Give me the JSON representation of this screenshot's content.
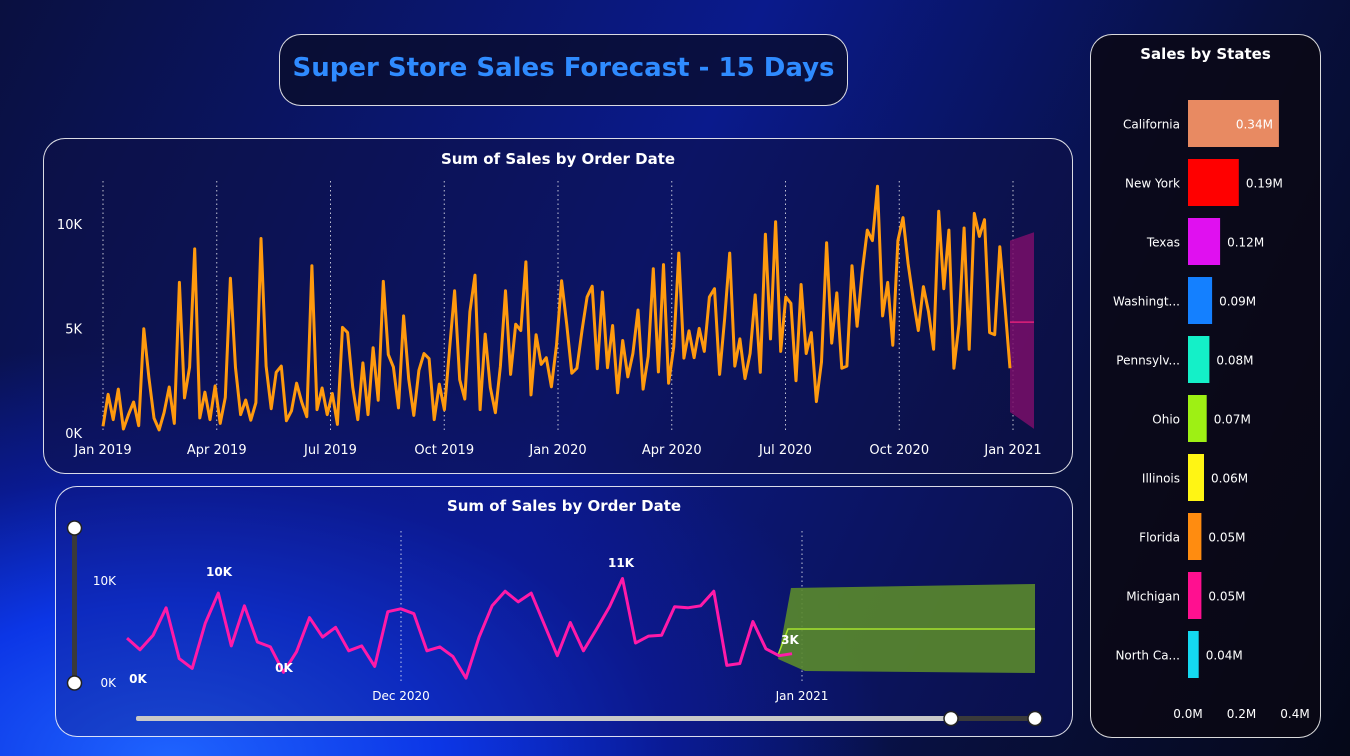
{
  "title": "Super Store Sales Forecast - 15 Days",
  "colors": {
    "title": "#2f8bff",
    "sales_line": "#ff9a0e",
    "forecast_band": "#7a0e6a",
    "forecast_line": "#e0207a",
    "bottom_line": "#ff1aa8",
    "bottom_band": "#5a8a2c",
    "bottom_forecast_line": "#a6e22e"
  },
  "chart_data": [
    {
      "type": "line",
      "title": "Sum of Sales by Order Date",
      "x_ticks": [
        "Jan 2019",
        "Apr 2019",
        "Jul 2019",
        "Oct 2019",
        "Jan 2020",
        "Apr 2020",
        "Jul 2020",
        "Oct 2020",
        "Jan 2021"
      ],
      "y_ticks": [
        "0K",
        "5K",
        "10K"
      ],
      "ylim": [
        0,
        12000
      ],
      "grid": "vertical dotted",
      "series": [
        {
          "values": [
            320,
            1850,
            640,
            2100,
            190,
            880,
            1480,
            350,
            4980,
            2650,
            710,
            150,
            980,
            2200,
            460,
            7200,
            1680,
            3150,
            8800,
            720,
            1950,
            640,
            2250,
            460,
            1700,
            7400,
            3120,
            880,
            1580,
            610,
            1450,
            9300,
            3200,
            1160,
            2900,
            3200,
            590,
            1060,
            2380,
            1480,
            780,
            8000,
            1120,
            2150,
            880,
            1890,
            410,
            5050,
            4800,
            2200,
            640,
            3350,
            880,
            4080,
            1570,
            7250,
            3750,
            3150,
            1200,
            5600,
            2580,
            840,
            3000,
            3800,
            3550,
            640,
            2340,
            1110,
            3980,
            6800,
            2550,
            1620,
            5800,
            7550,
            1120,
            4730,
            2180,
            970,
            3200,
            6800,
            2800,
            5200,
            4900,
            8180,
            1820,
            4700,
            3280,
            3600,
            2210,
            4200,
            7280,
            5200,
            2860,
            3100,
            4900,
            6500,
            7020,
            3080,
            6740,
            3120,
            5140,
            1920,
            4420,
            2680,
            3800,
            5880,
            2100,
            3660,
            7850,
            2920,
            8050,
            2380,
            4100,
            8600,
            3580,
            4880,
            3600,
            5000,
            3900,
            6500,
            6900,
            2800,
            5500,
            8600,
            3200,
            4500,
            2600,
            3800,
            6600,
            2900,
            9500,
            4500,
            10100,
            3900,
            6500,
            6200,
            2500,
            7100,
            3800,
            4800,
            1500,
            3400,
            9100,
            4300,
            6700,
            3100,
            3200,
            8000,
            5100,
            7700,
            9700,
            9200,
            11800,
            5600,
            7200,
            4200,
            9200,
            10300,
            8100,
            6400,
            4900,
            7000,
            5800,
            4000,
            10600,
            6900,
            9700,
            3100,
            5200,
            9800,
            4000,
            10500,
            9400,
            10200,
            4800,
            4700,
            8900,
            6100,
            3100
          ],
          "forecast": {
            "range": [
              1000,
              9600
            ],
            "value": 5300
          }
        }
      ]
    },
    {
      "type": "line",
      "title": "Sum of Sales by Order Date",
      "x_ticks": [
        "Dec 2020",
        "Jan 2021"
      ],
      "y_ticks": [
        "0K",
        "10K"
      ],
      "ylim": [
        0,
        13000
      ],
      "data_labels": [
        "0K",
        "10K",
        "0K",
        "11K",
        "3K"
      ],
      "series": [
        {
          "values": [
            4700,
            3500,
            5000,
            7800,
            2600,
            1600,
            6200,
            9300,
            3900,
            8000,
            4300,
            3800,
            1200,
            3300,
            6800,
            4800,
            5800,
            3400,
            3900,
            1800,
            7400,
            7700,
            7200,
            3400,
            3800,
            2800,
            600,
            4800,
            8000,
            9500,
            8400,
            9300,
            6100,
            2900,
            6300,
            3400,
            5600,
            7900,
            10800,
            4200,
            4900,
            5000,
            7900,
            7800,
            8000,
            9500,
            1900,
            2100,
            6400,
            3600,
            2900,
            3100
          ],
          "forecast": {
            "range": [
              900,
              9900
            ],
            "value": 4600
          }
        }
      ]
    },
    {
      "type": "bar",
      "title": "Sales by States",
      "orientation": "horizontal",
      "categories": [
        "California",
        "New York",
        "Texas",
        "Washingt...",
        "Pennsylv...",
        "Ohio",
        "Illinois",
        "Florida",
        "Michigan",
        "North Ca..."
      ],
      "values": [
        0.34,
        0.19,
        0.12,
        0.09,
        0.08,
        0.07,
        0.06,
        0.05,
        0.05,
        0.04
      ],
      "value_labels": [
        "0.34M",
        "0.19M",
        "0.12M",
        "0.09M",
        "0.08M",
        "0.07M",
        "0.06M",
        "0.05M",
        "0.05M",
        "0.04M"
      ],
      "bar_colors": [
        "#e88a62",
        "#ff0000",
        "#e010f0",
        "#1480ff",
        "#14f0c8",
        "#9ef014",
        "#fff514",
        "#ff8c10",
        "#ff1090",
        "#14d8f0"
      ],
      "x_ticks": [
        "0.0M",
        "0.2M",
        "0.4M"
      ],
      "xlim": [
        0,
        0.4
      ]
    }
  ]
}
